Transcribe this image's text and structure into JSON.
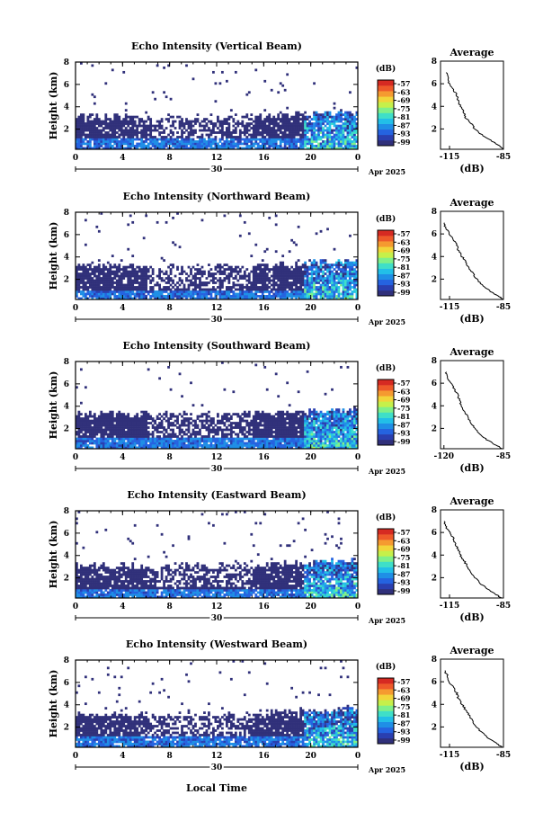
{
  "figure": {
    "x_axis_label": "Local Time",
    "date_label": "Apr 2025",
    "day_label": "30",
    "y_axis_label": "Height (km)"
  },
  "chart_data": [
    {
      "type": "heatmap",
      "title": "Echo Intensity (Vertical Beam)",
      "xlabel": "",
      "ylabel": "Height (km)",
      "x_ticks": [
        "0",
        "4",
        "8",
        "12",
        "16",
        "20",
        "0"
      ],
      "y_ticks": [
        "2",
        "4",
        "6",
        "8"
      ],
      "xlim": [
        0,
        24
      ],
      "ylim": [
        0.2,
        8
      ],
      "colorbar": {
        "label": "(dB)",
        "ticks": [
          "-57",
          "-63",
          "-69",
          "-75",
          "-81",
          "-87",
          "-93",
          "-99"
        ]
      },
      "profile_summary": {
        "echo_top_km": 3.1,
        "strong_bottom_km": 0.9,
        "strong_from_hour": 19.5,
        "sparse_aloft": true
      },
      "average": {
        "title": "Average",
        "xlabel": "(dB)",
        "x_ticks": [
          "-115",
          "-85"
        ],
        "y_ticks": [
          "2",
          "4",
          "6",
          "8"
        ],
        "xlim": [
          -120,
          -85
        ],
        "height": [
          0.2,
          0.5,
          1.0,
          1.5,
          2.0,
          2.5,
          3.0,
          3.5,
          4.0,
          4.5,
          5.0,
          5.5,
          6.0,
          6.5,
          7.0
        ],
        "values": [
          -85,
          -87,
          -92,
          -97,
          -101,
          -103,
          -106,
          -107,
          -109,
          -110,
          -111,
          -113,
          -115,
          -116,
          -117
        ]
      }
    },
    {
      "type": "heatmap",
      "title": "Echo Intensity (Northward Beam)",
      "xlabel": "",
      "ylabel": "Height (km)",
      "x_ticks": [
        "0",
        "4",
        "8",
        "12",
        "16",
        "20",
        "0"
      ],
      "y_ticks": [
        "2",
        "4",
        "6",
        "8"
      ],
      "xlim": [
        0,
        24
      ],
      "ylim": [
        0.2,
        8
      ],
      "colorbar": {
        "label": "(dB)",
        "ticks": [
          "-57",
          "-63",
          "-69",
          "-75",
          "-81",
          "-87",
          "-93",
          "-99"
        ]
      },
      "profile_summary": {
        "echo_top_km": 3.2,
        "strong_bottom_km": 0.8,
        "strong_from_hour": 19.5,
        "sparse_aloft": true
      },
      "average": {
        "title": "Average",
        "xlabel": "(dB)",
        "x_ticks": [
          "-115",
          "-85"
        ],
        "y_ticks": [
          "2",
          "4",
          "6",
          "8"
        ],
        "xlim": [
          -120,
          -85
        ],
        "height": [
          0.2,
          0.5,
          1.0,
          1.5,
          2.0,
          2.5,
          3.0,
          3.5,
          4.0,
          4.5,
          5.0,
          5.5,
          6.0,
          6.5,
          7.0
        ],
        "values": [
          -85,
          -88,
          -93,
          -97,
          -100,
          -102,
          -104,
          -106,
          -108,
          -110,
          -111,
          -113,
          -115,
          -117,
          -118
        ]
      }
    },
    {
      "type": "heatmap",
      "title": "Echo Intensity (Southward Beam)",
      "xlabel": "",
      "ylabel": "Height (km)",
      "x_ticks": [
        "0",
        "4",
        "8",
        "12",
        "16",
        "20",
        "0"
      ],
      "y_ticks": [
        "2",
        "4",
        "6",
        "8"
      ],
      "xlim": [
        0,
        24
      ],
      "ylim": [
        0.2,
        8
      ],
      "colorbar": {
        "label": "(dB)",
        "ticks": [
          "-57",
          "-63",
          "-69",
          "-75",
          "-81",
          "-87",
          "-93",
          "-99"
        ]
      },
      "profile_summary": {
        "echo_top_km": 3.3,
        "strong_bottom_km": 0.9,
        "strong_from_hour": 19.5,
        "sparse_aloft": true
      },
      "average": {
        "title": "Average",
        "xlabel": "(dB)",
        "x_ticks": [
          "-120",
          "-85"
        ],
        "y_ticks": [
          "2",
          "4",
          "6",
          "8"
        ],
        "xlim": [
          -122,
          -85
        ],
        "height": [
          0.2,
          0.5,
          1.0,
          1.5,
          2.0,
          2.5,
          3.0,
          3.5,
          4.0,
          4.5,
          5.0,
          5.5,
          6.0,
          6.5,
          7.0
        ],
        "values": [
          -86,
          -89,
          -95,
          -99,
          -102,
          -104,
          -106,
          -108,
          -110,
          -111,
          -112,
          -114,
          -116,
          -118,
          -119
        ]
      }
    },
    {
      "type": "heatmap",
      "title": "Echo Intensity (Eastward Beam)",
      "xlabel": "",
      "ylabel": "Height (km)",
      "x_ticks": [
        "0",
        "4",
        "8",
        "12",
        "16",
        "20",
        "0"
      ],
      "y_ticks": [
        "2",
        "4",
        "6",
        "8"
      ],
      "xlim": [
        0,
        24
      ],
      "ylim": [
        0.2,
        8
      ],
      "colorbar": {
        "label": "(dB)",
        "ticks": [
          "-57",
          "-63",
          "-69",
          "-75",
          "-81",
          "-87",
          "-93",
          "-99"
        ]
      },
      "profile_summary": {
        "echo_top_km": 3.1,
        "strong_bottom_km": 0.8,
        "strong_from_hour": 19.5,
        "sparse_aloft": true
      },
      "average": {
        "title": "Average",
        "xlabel": "(dB)",
        "x_ticks": [
          "-115",
          "-85"
        ],
        "y_ticks": [
          "2",
          "4",
          "6",
          "8"
        ],
        "xlim": [
          -120,
          -85
        ],
        "height": [
          0.2,
          0.5,
          1.0,
          1.5,
          2.0,
          2.5,
          3.0,
          3.5,
          4.0,
          4.5,
          5.0,
          5.5,
          6.0,
          6.5,
          7.0
        ],
        "values": [
          -86,
          -89,
          -94,
          -98,
          -101,
          -103,
          -105,
          -107,
          -109,
          -110,
          -112,
          -113,
          -115,
          -117,
          -118
        ]
      }
    },
    {
      "type": "heatmap",
      "title": "Echo Intensity (Westward Beam)",
      "xlabel": "Local Time",
      "ylabel": "Height (km)",
      "x_ticks": [
        "0",
        "4",
        "8",
        "12",
        "16",
        "20",
        "0"
      ],
      "y_ticks": [
        "2",
        "4",
        "6",
        "8"
      ],
      "xlim": [
        0,
        24
      ],
      "ylim": [
        0.2,
        8
      ],
      "colorbar": {
        "label": "(dB)",
        "ticks": [
          "-57",
          "-63",
          "-69",
          "-75",
          "-81",
          "-87",
          "-93",
          "-99"
        ]
      },
      "profile_summary": {
        "echo_top_km": 3.2,
        "strong_bottom_km": 0.9,
        "strong_from_hour": 19.5,
        "sparse_aloft": true
      },
      "average": {
        "title": "Average",
        "xlabel": "(dB)",
        "x_ticks": [
          "-115",
          "-85"
        ],
        "y_ticks": [
          "2",
          "4",
          "6",
          "8"
        ],
        "xlim": [
          -120,
          -85
        ],
        "height": [
          0.2,
          0.5,
          1.0,
          1.5,
          2.0,
          2.5,
          3.0,
          3.5,
          4.0,
          4.5,
          5.0,
          5.5,
          6.0,
          6.5,
          7.0
        ],
        "values": [
          -86,
          -88,
          -93,
          -97,
          -100,
          -102,
          -104,
          -106,
          -108,
          -110,
          -111,
          -113,
          -115,
          -116,
          -118
        ]
      }
    }
  ]
}
